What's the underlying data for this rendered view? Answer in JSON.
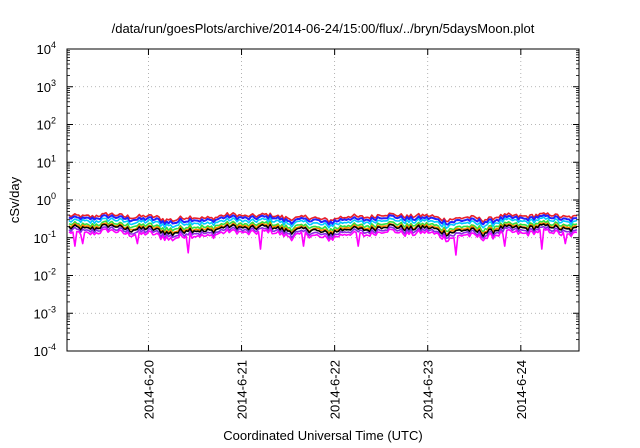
{
  "chart_data": {
    "type": "line",
    "title": "/data/run/goesPlots/archive/2014-06-24/15:00/flux/../bryn/5daysMoon.plot",
    "xlabel": "Coordinated Universal Time (UTC)",
    "ylabel": "cSv/day",
    "y_scale": "log",
    "ylim": [
      0.0001,
      10000
    ],
    "y_ticks": [
      {
        "base": "10",
        "exp": "-4",
        "value": 0.0001
      },
      {
        "base": "10",
        "exp": "-3",
        "value": 0.001
      },
      {
        "base": "10",
        "exp": "-2",
        "value": 0.01
      },
      {
        "base": "10",
        "exp": "-1",
        "value": 0.1
      },
      {
        "base": "10",
        "exp": "0",
        "value": 1
      },
      {
        "base": "10",
        "exp": "1",
        "value": 10
      },
      {
        "base": "10",
        "exp": "2",
        "value": 100
      },
      {
        "base": "10",
        "exp": "3",
        "value": 1000
      },
      {
        "base": "10",
        "exp": "4",
        "value": 10000
      }
    ],
    "x_range": [
      "2014-06-19T03:00",
      "2014-06-24T15:00"
    ],
    "x_ticks": [
      {
        "label": "2014-6-20",
        "value": "2014-06-20T00:00"
      },
      {
        "label": "2014-6-21",
        "value": "2014-06-21T00:00"
      },
      {
        "label": "2014-6-22",
        "value": "2014-06-22T00:00"
      },
      {
        "label": "2014-6-23",
        "value": "2014-06-23T00:00"
      },
      {
        "label": "2014-6-24",
        "value": "2014-06-24T00:00"
      }
    ],
    "grid": true,
    "series": [
      {
        "color": "#e8202a",
        "base": 0.36
      },
      {
        "color": "#2020ff",
        "base": 0.31
      },
      {
        "color": "#00c8ff",
        "base": 0.26
      },
      {
        "color": "#30e040",
        "base": 0.21
      },
      {
        "color": "#ff8800",
        "base": 0.185
      },
      {
        "color": "#000000",
        "base": 0.17
      },
      {
        "color": "#8a2be2",
        "base": 0.145
      },
      {
        "color": "#ff00ff",
        "base": 0.125
      }
    ],
    "dips": [
      {
        "x": "2014-06-19T04:30",
        "value": 0.06
      },
      {
        "x": "2014-06-19T06:30",
        "value": 0.07
      },
      {
        "x": "2014-06-19T21:00",
        "value": 0.07
      },
      {
        "x": "2014-06-20T10:00",
        "value": 0.04
      },
      {
        "x": "2014-06-21T05:00",
        "value": 0.05
      },
      {
        "x": "2014-06-21T16:00",
        "value": 0.06
      },
      {
        "x": "2014-06-22T06:00",
        "value": 0.06
      },
      {
        "x": "2014-06-23T07:30",
        "value": 0.035
      },
      {
        "x": "2014-06-23T20:00",
        "value": 0.06
      },
      {
        "x": "2014-06-24T06:00",
        "value": 0.05
      },
      {
        "x": "2014-06-24T12:00",
        "value": 0.07
      }
    ]
  }
}
